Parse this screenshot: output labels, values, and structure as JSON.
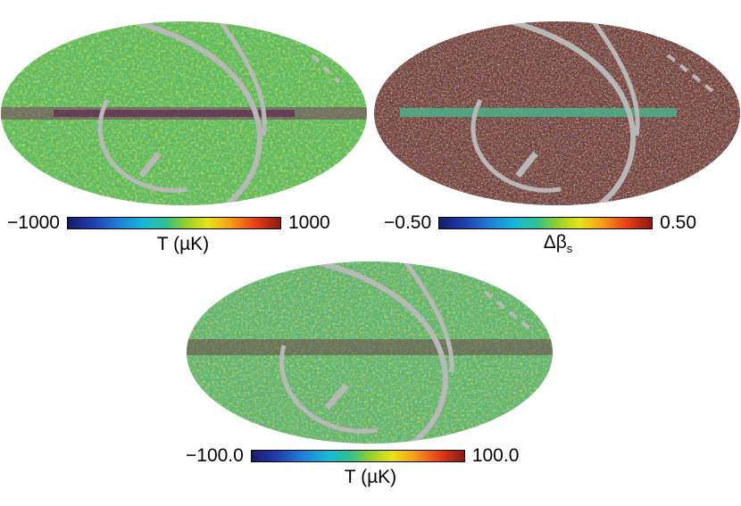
{
  "panels": {
    "top_left": {
      "scale_min": "−1000",
      "scale_max": "1000",
      "unit": "T (µK)"
    },
    "top_right": {
      "scale_min": "−0.50",
      "scale_max": "0.50",
      "unit_main": "Δβ",
      "unit_sub": "s"
    },
    "bottom": {
      "scale_min": "−100.0",
      "scale_max": "100.0",
      "unit": "T (µK)"
    }
  },
  "colors": {
    "masked": "#b8b8b8",
    "bg_green": "#62b95a",
    "bg_noise": "#6a3a30"
  }
}
